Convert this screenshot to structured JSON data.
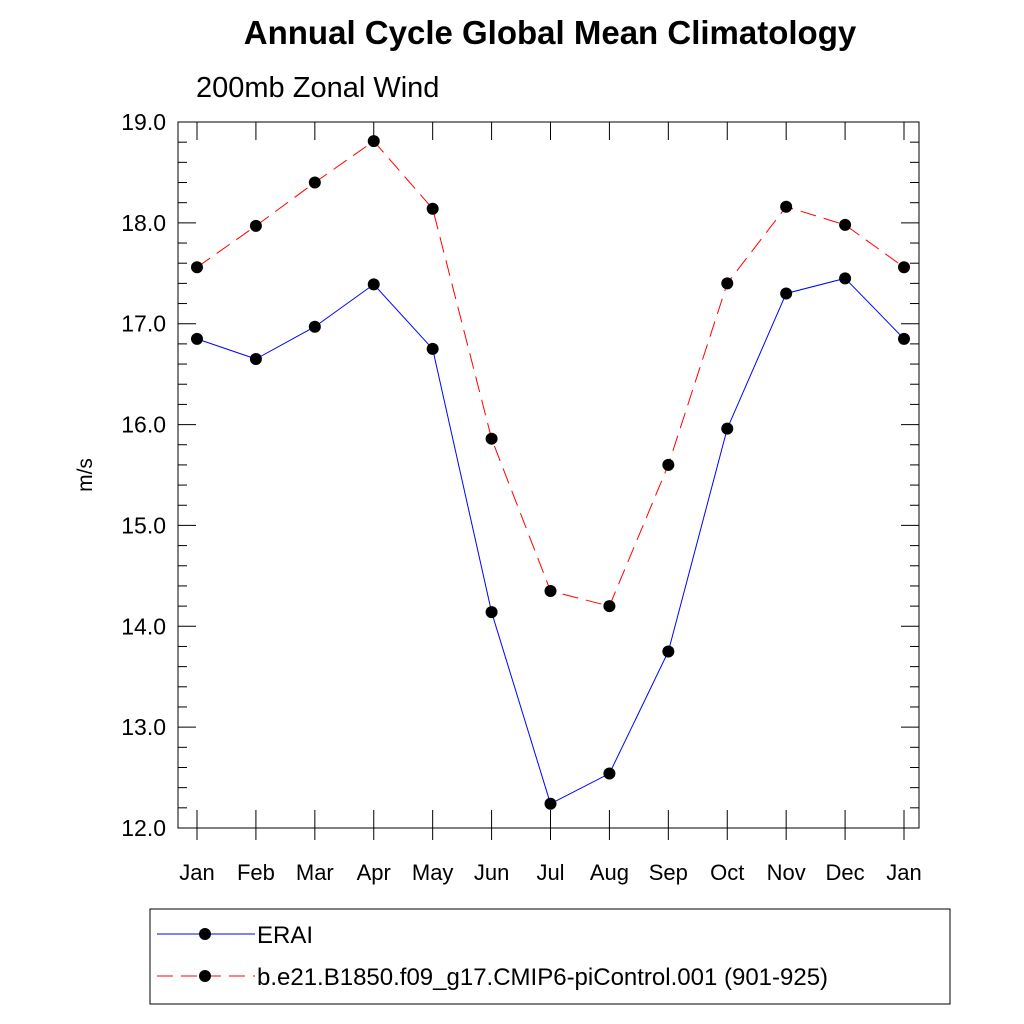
{
  "chart_data": {
    "type": "line",
    "title": "Annual Cycle Global Mean Climatology",
    "subtitle": "200mb Zonal Wind",
    "ylabel": "m/s",
    "xlabel": "",
    "categories": [
      "Jan",
      "Feb",
      "Mar",
      "Apr",
      "May",
      "Jun",
      "Jul",
      "Aug",
      "Sep",
      "Oct",
      "Nov",
      "Dec",
      "Jan"
    ],
    "ylim": [
      12.0,
      19.0
    ],
    "yticks": [
      "12.0",
      "13.0",
      "14.0",
      "15.0",
      "16.0",
      "17.0",
      "18.0",
      "19.0"
    ],
    "series": [
      {
        "name": "ERAI",
        "color": "#0000ff",
        "dash": "solid",
        "marker": "filled-circle",
        "values": [
          16.85,
          16.65,
          16.97,
          17.39,
          16.75,
          14.14,
          12.24,
          12.54,
          13.75,
          15.96,
          17.3,
          17.45,
          16.85
        ]
      },
      {
        "name": "b.e21.B1850.f09_g17.CMIP6-piControl.001 (901-925)",
        "color": "#ff0000",
        "dash": "dashed",
        "marker": "filled-circle",
        "values": [
          17.56,
          17.97,
          18.4,
          18.81,
          18.14,
          15.86,
          14.35,
          14.2,
          15.6,
          17.4,
          18.16,
          17.98,
          17.56
        ]
      }
    ],
    "grid": false,
    "legend_position": "bottom"
  }
}
